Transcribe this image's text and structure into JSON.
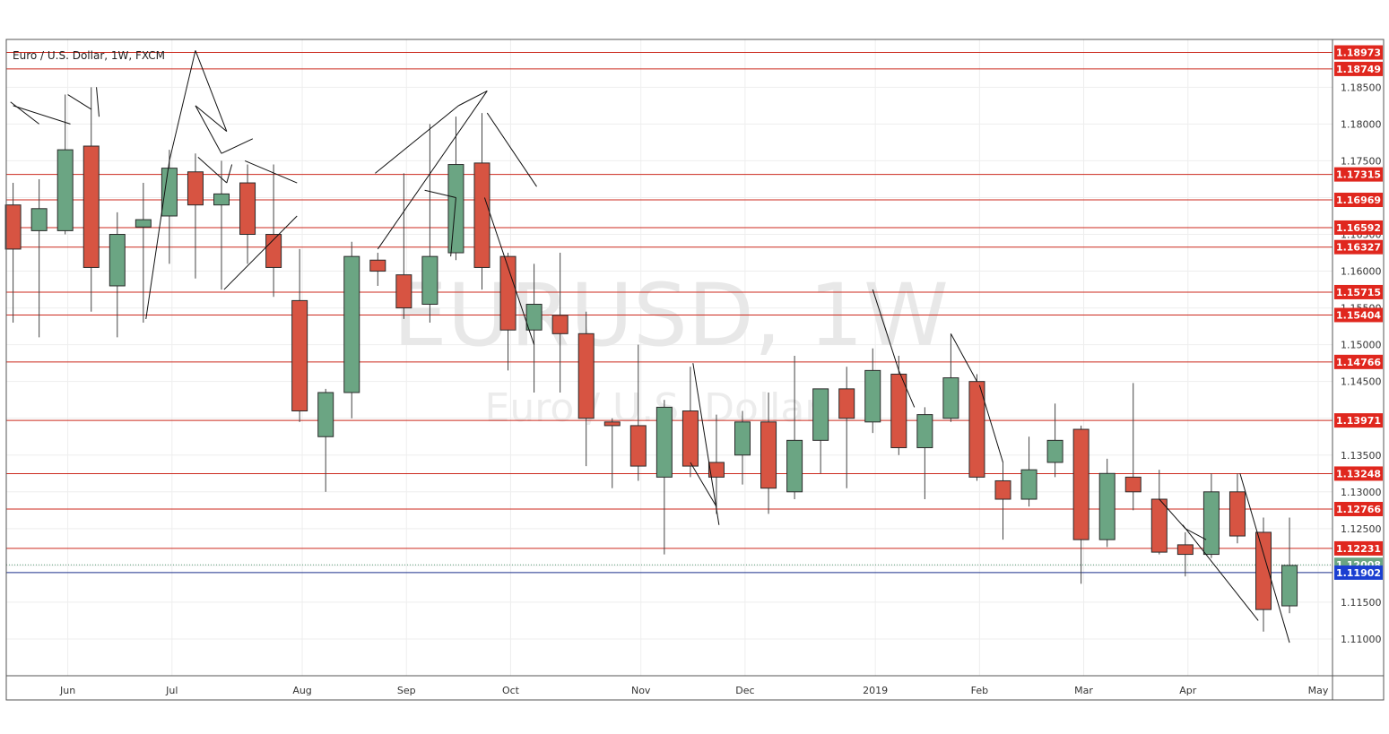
{
  "chart_data": {
    "type": "candlestick",
    "title": "Euro / U.S. Dollar, 1W, FXCM",
    "watermark": {
      "symbol": "EURUSD, 1W",
      "description": "Euro / U.S. Dollar"
    },
    "y_axis": {
      "min": 1.105,
      "max": 1.1915,
      "ticks": [
        1.11,
        1.115,
        1.12,
        1.125,
        1.13,
        1.135,
        1.14,
        1.145,
        1.15,
        1.155,
        1.16,
        1.165,
        1.17,
        1.175,
        1.18,
        1.185
      ]
    },
    "tick_labels": [
      "1.11000",
      "1.11500",
      "1.12000",
      "1.12500",
      "1.13000",
      "1.13500",
      "1.14000",
      "1.14500",
      "1.15000",
      "1.15500",
      "1.16000",
      "1.16500",
      "1.17000",
      "1.17500",
      "1.18000",
      "1.18500"
    ],
    "x_axis": {
      "labels": [
        {
          "text": "Jun",
          "week": 2.1
        },
        {
          "text": "Jul",
          "week": 6.1
        },
        {
          "text": "Aug",
          "week": 11.1
        },
        {
          "text": "Sep",
          "week": 15.1
        },
        {
          "text": "Oct",
          "week": 19.1
        },
        {
          "text": "Nov",
          "week": 24.1
        },
        {
          "text": "Dec",
          "week": 28.1
        },
        {
          "text": "2019",
          "week": 33.1
        },
        {
          "text": "Feb",
          "week": 37.1
        },
        {
          "text": "Mar",
          "week": 41.1
        },
        {
          "text": "Apr",
          "week": 45.1
        },
        {
          "text": "May",
          "week": 50.1
        }
      ]
    },
    "candles": [
      {
        "o": 1.169,
        "h": 1.172,
        "l": 1.153,
        "c": 1.163
      },
      {
        "o": 1.1655,
        "h": 1.1725,
        "l": 1.151,
        "c": 1.1685
      },
      {
        "o": 1.1655,
        "h": 1.184,
        "l": 1.165,
        "c": 1.1765
      },
      {
        "o": 1.177,
        "h": 1.185,
        "l": 1.1545,
        "c": 1.1605
      },
      {
        "o": 1.158,
        "h": 1.168,
        "l": 1.151,
        "c": 1.165
      },
      {
        "o": 1.166,
        "h": 1.172,
        "l": 1.153,
        "c": 1.167
      },
      {
        "o": 1.1675,
        "h": 1.1765,
        "l": 1.161,
        "c": 1.174
      },
      {
        "o": 1.1735,
        "h": 1.176,
        "l": 1.159,
        "c": 1.169
      },
      {
        "o": 1.169,
        "h": 1.175,
        "l": 1.1575,
        "c": 1.1705
      },
      {
        "o": 1.172,
        "h": 1.1745,
        "l": 1.161,
        "c": 1.165
      },
      {
        "o": 1.165,
        "h": 1.1745,
        "l": 1.1565,
        "c": 1.1605
      },
      {
        "o": 1.156,
        "h": 1.163,
        "l": 1.1395,
        "c": 1.141
      },
      {
        "o": 1.1375,
        "h": 1.144,
        "l": 1.13,
        "c": 1.1435
      },
      {
        "o": 1.1435,
        "h": 1.164,
        "l": 1.14,
        "c": 1.162
      },
      {
        "o": 1.1615,
        "h": 1.1625,
        "l": 1.158,
        "c": 1.16
      },
      {
        "o": 1.1595,
        "h": 1.1733,
        "l": 1.1535,
        "c": 1.155
      },
      {
        "o": 1.1555,
        "h": 1.18,
        "l": 1.153,
        "c": 1.162
      },
      {
        "o": 1.1625,
        "h": 1.181,
        "l": 1.1615,
        "c": 1.1745
      },
      {
        "o": 1.1747,
        "h": 1.1815,
        "l": 1.1575,
        "c": 1.1605
      },
      {
        "o": 1.162,
        "h": 1.1625,
        "l": 1.1465,
        "c": 1.152
      },
      {
        "o": 1.152,
        "h": 1.161,
        "l": 1.1435,
        "c": 1.1555
      },
      {
        "o": 1.154,
        "h": 1.1625,
        "l": 1.1435,
        "c": 1.1515
      },
      {
        "o": 1.1515,
        "h": 1.1545,
        "l": 1.1335,
        "c": 1.14
      },
      {
        "o": 1.1395,
        "h": 1.14,
        "l": 1.1305,
        "c": 1.139
      },
      {
        "o": 1.139,
        "h": 1.15,
        "l": 1.1315,
        "c": 1.1335
      },
      {
        "o": 1.132,
        "h": 1.1425,
        "l": 1.1215,
        "c": 1.1415
      },
      {
        "o": 1.141,
        "h": 1.147,
        "l": 1.132,
        "c": 1.1335
      },
      {
        "o": 1.134,
        "h": 1.1405,
        "l": 1.127,
        "c": 1.132
      },
      {
        "o": 1.135,
        "h": 1.141,
        "l": 1.131,
        "c": 1.1395
      },
      {
        "o": 1.1395,
        "h": 1.1435,
        "l": 1.127,
        "c": 1.1305
      },
      {
        "o": 1.13,
        "h": 1.1485,
        "l": 1.129,
        "c": 1.137
      },
      {
        "o": 1.137,
        "h": 1.144,
        "l": 1.1325,
        "c": 1.144
      },
      {
        "o": 1.144,
        "h": 1.147,
        "l": 1.1305,
        "c": 1.14
      },
      {
        "o": 1.1395,
        "h": 1.1495,
        "l": 1.138,
        "c": 1.1465
      },
      {
        "o": 1.146,
        "h": 1.1485,
        "l": 1.135,
        "c": 1.136
      },
      {
        "o": 1.136,
        "h": 1.1415,
        "l": 1.129,
        "c": 1.1405
      },
      {
        "o": 1.14,
        "h": 1.1515,
        "l": 1.1395,
        "c": 1.1455
      },
      {
        "o": 1.145,
        "h": 1.146,
        "l": 1.1315,
        "c": 1.132
      },
      {
        "o": 1.1315,
        "h": 1.134,
        "l": 1.1235,
        "c": 1.129
      },
      {
        "o": 1.129,
        "h": 1.1375,
        "l": 1.128,
        "c": 1.133
      },
      {
        "o": 1.134,
        "h": 1.142,
        "l": 1.132,
        "c": 1.137
      },
      {
        "o": 1.1385,
        "h": 1.139,
        "l": 1.1175,
        "c": 1.1235
      },
      {
        "o": 1.1235,
        "h": 1.1345,
        "l": 1.1225,
        "c": 1.1325
      },
      {
        "o": 1.132,
        "h": 1.1448,
        "l": 1.1275,
        "c": 1.13
      },
      {
        "o": 1.129,
        "h": 1.133,
        "l": 1.1215,
        "c": 1.1218
      },
      {
        "o": 1.1228,
        "h": 1.1245,
        "l": 1.1185,
        "c": 1.1215
      },
      {
        "o": 1.1215,
        "h": 1.1325,
        "l": 1.121,
        "c": 1.13
      },
      {
        "o": 1.13,
        "h": 1.1325,
        "l": 1.123,
        "c": 1.124
      },
      {
        "o": 1.1245,
        "h": 1.1265,
        "l": 1.111,
        "c": 1.114
      },
      {
        "o": 1.1145,
        "h": 1.1265,
        "l": 1.1135,
        "c": 1.12
      }
    ],
    "levels": [
      {
        "value": 1.18973,
        "label": "1.18973"
      },
      {
        "value": 1.18749,
        "label": "1.18749"
      },
      {
        "value": 1.17315,
        "label": "1.17315"
      },
      {
        "value": 1.16969,
        "label": "1.16969"
      },
      {
        "value": 1.16592,
        "label": "1.16592"
      },
      {
        "value": 1.16327,
        "label": "1.16327"
      },
      {
        "value": 1.15715,
        "label": "1.15715"
      },
      {
        "value": 1.15404,
        "label": "1.15404"
      },
      {
        "value": 1.14766,
        "label": "1.14766"
      },
      {
        "value": 1.13971,
        "label": "1.13971"
      },
      {
        "value": 1.13248,
        "label": "1.13248"
      },
      {
        "value": 1.12766,
        "label": "1.12766"
      },
      {
        "value": 1.12231,
        "label": "1.12231"
      }
    ],
    "current_price": {
      "value": 1.12008,
      "label": "1.12008"
    },
    "reference_line": {
      "value": 1.11902,
      "label": "1.11902"
    },
    "trendlines": [
      [
        [
          -0.1,
          1.183
        ],
        [
          1.0,
          1.18
        ]
      ],
      [
        [
          0.0,
          1.1825
        ],
        [
          2.2,
          1.18
        ]
      ],
      [
        [
          2.1,
          1.184
        ],
        [
          3.0,
          1.182
        ]
      ],
      [
        [
          3.2,
          1.185
        ],
        [
          3.3,
          1.181
        ]
      ],
      [
        [
          5.1,
          1.1535
        ],
        [
          6.0,
          1.175
        ]
      ],
      [
        [
          6.0,
          1.175
        ],
        [
          7.0,
          1.19
        ]
      ],
      [
        [
          7.0,
          1.19
        ],
        [
          8.2,
          1.179
        ]
      ],
      [
        [
          8.2,
          1.179
        ],
        [
          7.0,
          1.1825
        ]
      ],
      [
        [
          7.0,
          1.1825
        ],
        [
          8.0,
          1.176
        ]
      ],
      [
        [
          8.0,
          1.176
        ],
        [
          9.2,
          1.178
        ]
      ],
      [
        [
          7.1,
          1.1755
        ],
        [
          8.2,
          1.172
        ]
      ],
      [
        [
          8.2,
          1.172
        ],
        [
          8.4,
          1.1745
        ]
      ],
      [
        [
          8.9,
          1.175
        ],
        [
          10.9,
          1.172
        ]
      ],
      [
        [
          8.1,
          1.1575
        ],
        [
          10.9,
          1.1675
        ]
      ],
      [
        [
          13.9,
          1.1733
        ],
        [
          17.1,
          1.1825
        ]
      ],
      [
        [
          17.1,
          1.1825
        ],
        [
          18.2,
          1.1845
        ]
      ],
      [
        [
          18.2,
          1.1845
        ],
        [
          14.0,
          1.163
        ]
      ],
      [
        [
          15.8,
          1.171
        ],
        [
          17.0,
          1.17
        ]
      ],
      [
        [
          17.0,
          1.17
        ],
        [
          16.8,
          1.162
        ]
      ],
      [
        [
          18.2,
          1.1815
        ],
        [
          20.1,
          1.1715
        ]
      ],
      [
        [
          18.1,
          1.17
        ],
        [
          20.0,
          1.15
        ]
      ],
      [
        [
          26.1,
          1.1475
        ],
        [
          27.1,
          1.1255
        ]
      ],
      [
        [
          26.0,
          1.134
        ],
        [
          27.0,
          1.128
        ]
      ],
      [
        [
          33.0,
          1.1575
        ],
        [
          34.0,
          1.1465
        ]
      ],
      [
        [
          34.0,
          1.1465
        ],
        [
          34.6,
          1.1415
        ]
      ],
      [
        [
          36.0,
          1.1515
        ],
        [
          37.0,
          1.145
        ]
      ],
      [
        [
          37.1,
          1.1445
        ],
        [
          38.0,
          1.134
        ]
      ],
      [
        [
          44.0,
          1.129
        ],
        [
          45.0,
          1.125
        ]
      ],
      [
        [
          45.0,
          1.125
        ],
        [
          45.8,
          1.1235
        ]
      ],
      [
        [
          44.9,
          1.1255
        ],
        [
          47.8,
          1.1125
        ]
      ],
      [
        [
          47.1,
          1.1325
        ],
        [
          49.0,
          1.1095
        ]
      ]
    ]
  }
}
